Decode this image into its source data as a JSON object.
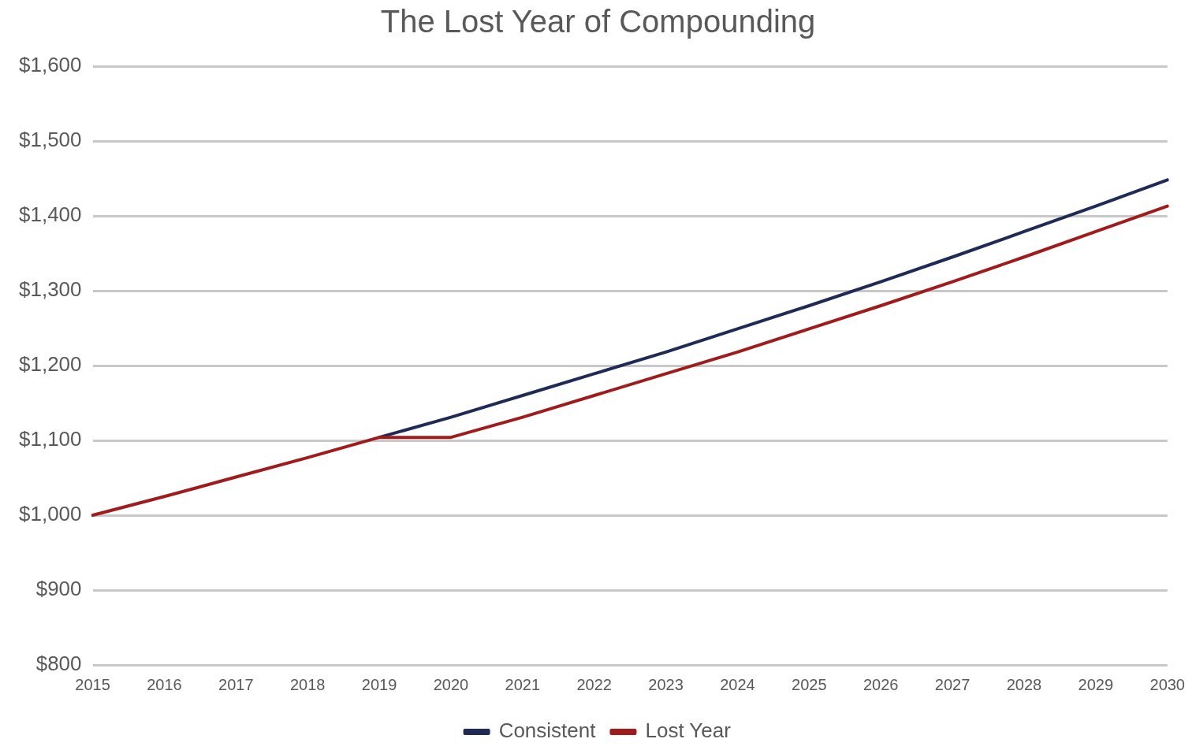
{
  "chart_data": {
    "type": "line",
    "title": "The Lost Year of Compounding",
    "categories": [
      "2015",
      "2016",
      "2017",
      "2018",
      "2019",
      "2020",
      "2021",
      "2022",
      "2023",
      "2024",
      "2025",
      "2026",
      "2027",
      "2028",
      "2029",
      "2030"
    ],
    "series": [
      {
        "name": "Consistent",
        "color": "#1f2a56",
        "values": [
          null,
          null,
          null,
          null,
          1104,
          1131,
          1160,
          1189,
          1218,
          1249,
          1280,
          1312,
          1345,
          1379,
          1413,
          1448
        ]
      },
      {
        "name": "Lost Year",
        "color": "#a01c1c",
        "values": [
          1000,
          1025,
          1051,
          1077,
          1104,
          1104,
          1131,
          1160,
          1189,
          1218,
          1249,
          1280,
          1312,
          1345,
          1379,
          1413
        ]
      }
    ],
    "ylim": [
      800,
      1600
    ],
    "yticks": [
      {
        "value": 800,
        "label": "$800"
      },
      {
        "value": 900,
        "label": "$900"
      },
      {
        "value": 1000,
        "label": "$1,000"
      },
      {
        "value": 1100,
        "label": "$1,100"
      },
      {
        "value": 1200,
        "label": "$1,200"
      },
      {
        "value": 1300,
        "label": "$1,300"
      },
      {
        "value": 1400,
        "label": "$1,400"
      },
      {
        "value": 1500,
        "label": "$1,500"
      },
      {
        "value": 1600,
        "label": "$1,600"
      }
    ],
    "grid": "y",
    "legend": "bottom",
    "marker": "none",
    "line_style": "solid"
  }
}
